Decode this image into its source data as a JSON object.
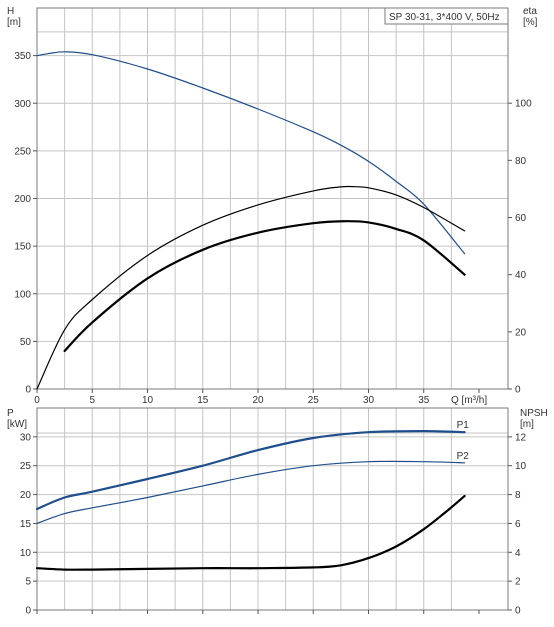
{
  "chart_data": [
    {
      "type": "line",
      "title": "SP 30-31, 3*400 V, 50Hz",
      "left_axis": {
        "label_lines": [
          "H",
          "[m]"
        ],
        "range": [
          0,
          400
        ],
        "ticks": [
          0,
          50,
          100,
          150,
          200,
          250,
          300,
          350
        ]
      },
      "right_axis": {
        "label_lines": [
          "eta",
          "[%]"
        ],
        "range": [
          0,
          133.3
        ],
        "ticks": [
          0,
          20,
          40,
          60,
          80,
          100
        ]
      },
      "x_axis": {
        "label": "Q [m³/h]",
        "range": [
          0,
          40
        ],
        "ticks": [
          0,
          5,
          10,
          15,
          20,
          25,
          30,
          35
        ]
      },
      "grid": true,
      "series": [
        {
          "axis": "left",
          "color": "#1f4e8c",
          "x": [
            0,
            1,
            2.5,
            5,
            10,
            15,
            20,
            25,
            27.5,
            30,
            32.5,
            35,
            38.7
          ],
          "values": [
            350,
            352,
            354,
            351,
            336,
            316,
            294,
            270,
            256,
            239,
            218,
            194,
            142
          ]
        },
        {
          "axis": "right",
          "color": "#000000",
          "x": [
            0,
            2.5,
            5,
            10,
            15,
            20,
            25,
            27.5,
            28.5,
            30,
            32.5,
            35,
            38.7
          ],
          "values": [
            0,
            20.7,
            31.3,
            46.7,
            57.3,
            64.4,
            69.3,
            70.7,
            70.8,
            70.4,
            67.9,
            63.5,
            55.3
          ]
        },
        {
          "axis": "right",
          "color": "#000000",
          "bold": true,
          "x": [
            2.5,
            5,
            10,
            15,
            20,
            25,
            28,
            30,
            32.5,
            35,
            38.7
          ],
          "values": [
            13.3,
            23.3,
            38.7,
            48.7,
            54.7,
            58.0,
            58.7,
            58.3,
            56.0,
            52.0,
            40.0
          ]
        }
      ]
    },
    {
      "type": "line",
      "left_axis": {
        "label_lines": [
          "P",
          "[kW]"
        ],
        "range": [
          0,
          35
        ],
        "ticks": [
          0,
          5,
          10,
          15,
          20,
          25,
          30
        ]
      },
      "right_axis": {
        "label_lines": [
          "NPSH",
          "[m]"
        ],
        "range": [
          0,
          14
        ],
        "ticks": [
          0,
          2,
          4,
          6,
          8,
          10,
          12
        ]
      },
      "x_axis": {
        "range": [
          0,
          40
        ]
      },
      "grid": true,
      "series": [
        {
          "name": "P1",
          "axis": "left",
          "color": "#1f4e8c",
          "bold": true,
          "x": [
            0,
            2.5,
            5,
            10,
            15,
            20,
            25,
            30,
            35,
            38.7
          ],
          "values": [
            17.5,
            19.5,
            20.5,
            22.7,
            25.0,
            27.7,
            29.8,
            30.8,
            31.0,
            30.8
          ]
        },
        {
          "name": "P2",
          "axis": "left",
          "color": "#1f4e8c",
          "x": [
            0,
            2.5,
            5,
            10,
            15,
            20,
            25,
            30,
            35,
            38.7
          ],
          "values": [
            15.0,
            16.7,
            17.7,
            19.5,
            21.5,
            23.5,
            25.0,
            25.7,
            25.7,
            25.5
          ]
        },
        {
          "axis": "right",
          "color": "#000000",
          "bold": true,
          "x": [
            0,
            2.5,
            5,
            10,
            15,
            20,
            25,
            27.5,
            30,
            32.5,
            35,
            37,
            38.7
          ],
          "values": [
            2.9,
            2.8,
            2.8,
            2.85,
            2.9,
            2.9,
            2.95,
            3.1,
            3.6,
            4.4,
            5.6,
            6.8,
            7.9
          ]
        }
      ]
    }
  ]
}
